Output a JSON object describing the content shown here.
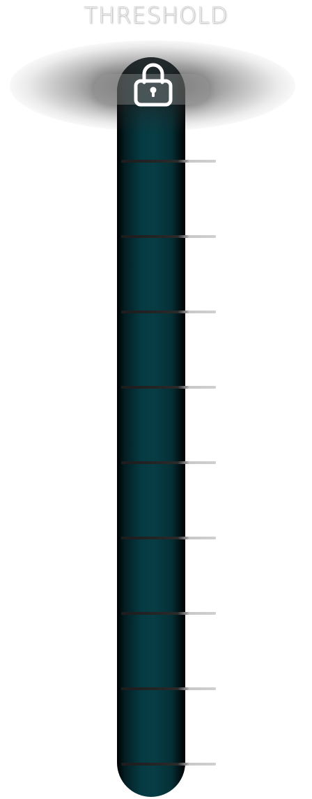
{
  "title": "THRESHOLD",
  "lock_state": "locked",
  "tick_count": 9,
  "colors": {
    "track": "#063a42",
    "tick": "#d0d0d0",
    "title": "#f2f2f2"
  },
  "icons": {
    "lock": "lock-icon"
  }
}
